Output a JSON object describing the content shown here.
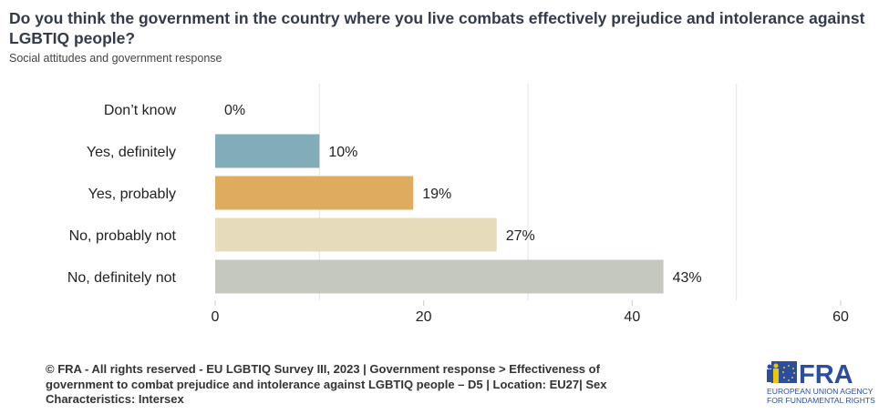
{
  "title": "Do you think the government in the country where you live combats effectively prejudice and intolerance against LGBTIQ people?",
  "subtitle": "Social attitudes and government response",
  "footer": "© FRA - All rights reserved - EU LGBTIQ Survey III, 2023 | Government response > Effectiveness of government to combat prejudice and intolerance against LGBTIQ people – D5 | Location: EU27| Sex Characteristics: Intersex",
  "logo": {
    "text": "FRA",
    "line1": "EUROPEAN UNION AGENCY",
    "line2": "FOR FUNDAMENTAL RIGHTS"
  },
  "chart_data": {
    "type": "bar",
    "orientation": "horizontal",
    "categories": [
      "Don’t know",
      "Yes, definitely",
      "Yes, probably",
      "No, probably not",
      "No, definitely not"
    ],
    "values": [
      0,
      10,
      19,
      27,
      43
    ],
    "value_labels": [
      "0%",
      "10%",
      "19%",
      "27%",
      "43%"
    ],
    "colors": [
      "#82adb8",
      "#82adb8",
      "#dfab5f",
      "#e6dcbc",
      "#c5c8bf"
    ],
    "xlim": [
      0,
      60
    ],
    "xticks": [
      0,
      20,
      40,
      60
    ],
    "grid": true,
    "xlabel": "",
    "ylabel": ""
  }
}
